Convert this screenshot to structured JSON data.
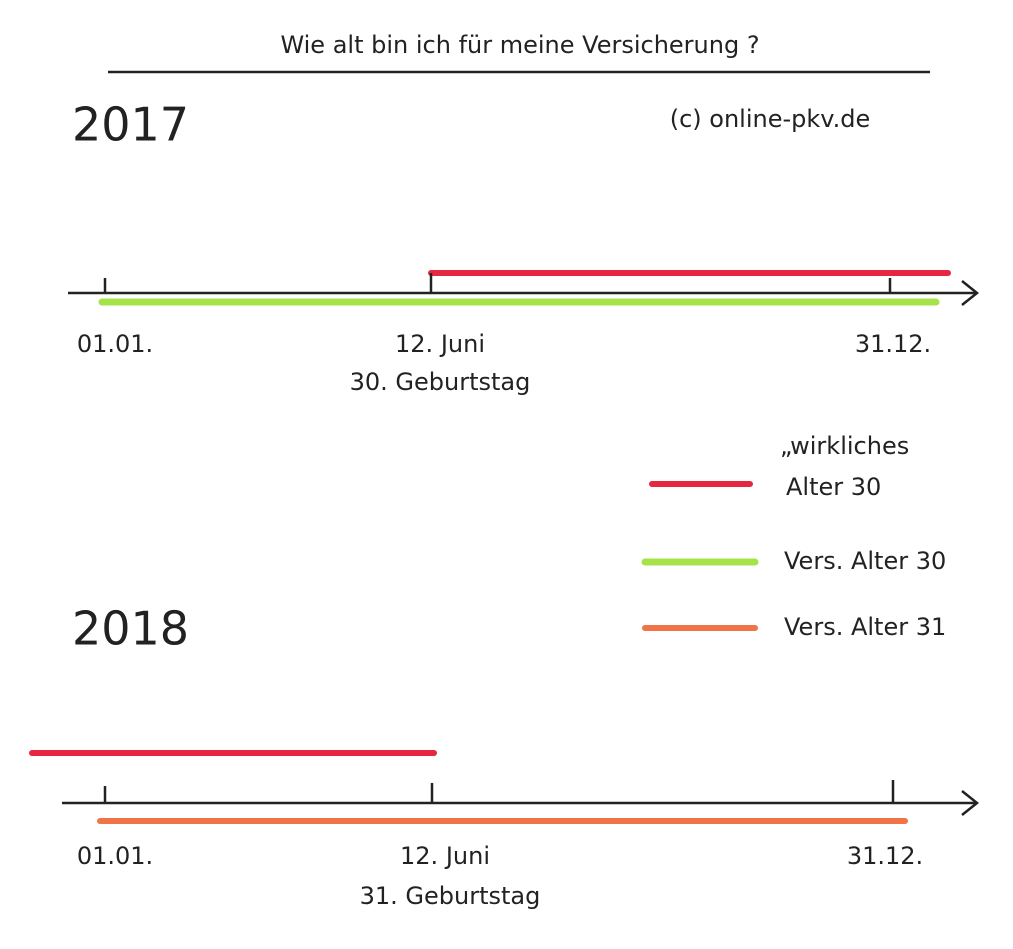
{
  "title": "Wie alt bin ich für meine Versicherung ?",
  "credit": "(c) online-pkv.de",
  "timelines": [
    {
      "year": "2017",
      "start": "01.01.",
      "mid": "12. Juni",
      "mid_note": "30. Geburtstag",
      "end": "31.12."
    },
    {
      "year": "2018",
      "start": "01.01.",
      "mid": "12. Juni",
      "mid_note": "31. Geburtstag",
      "end": "31.12."
    }
  ],
  "legend": [
    {
      "label_lines": [
        "„wirkliches",
        "Alter 30"
      ]
    },
    {
      "label_lines": [
        "Vers. Alter 30"
      ]
    },
    {
      "label_lines": [
        "Vers. Alter 31"
      ]
    }
  ]
}
